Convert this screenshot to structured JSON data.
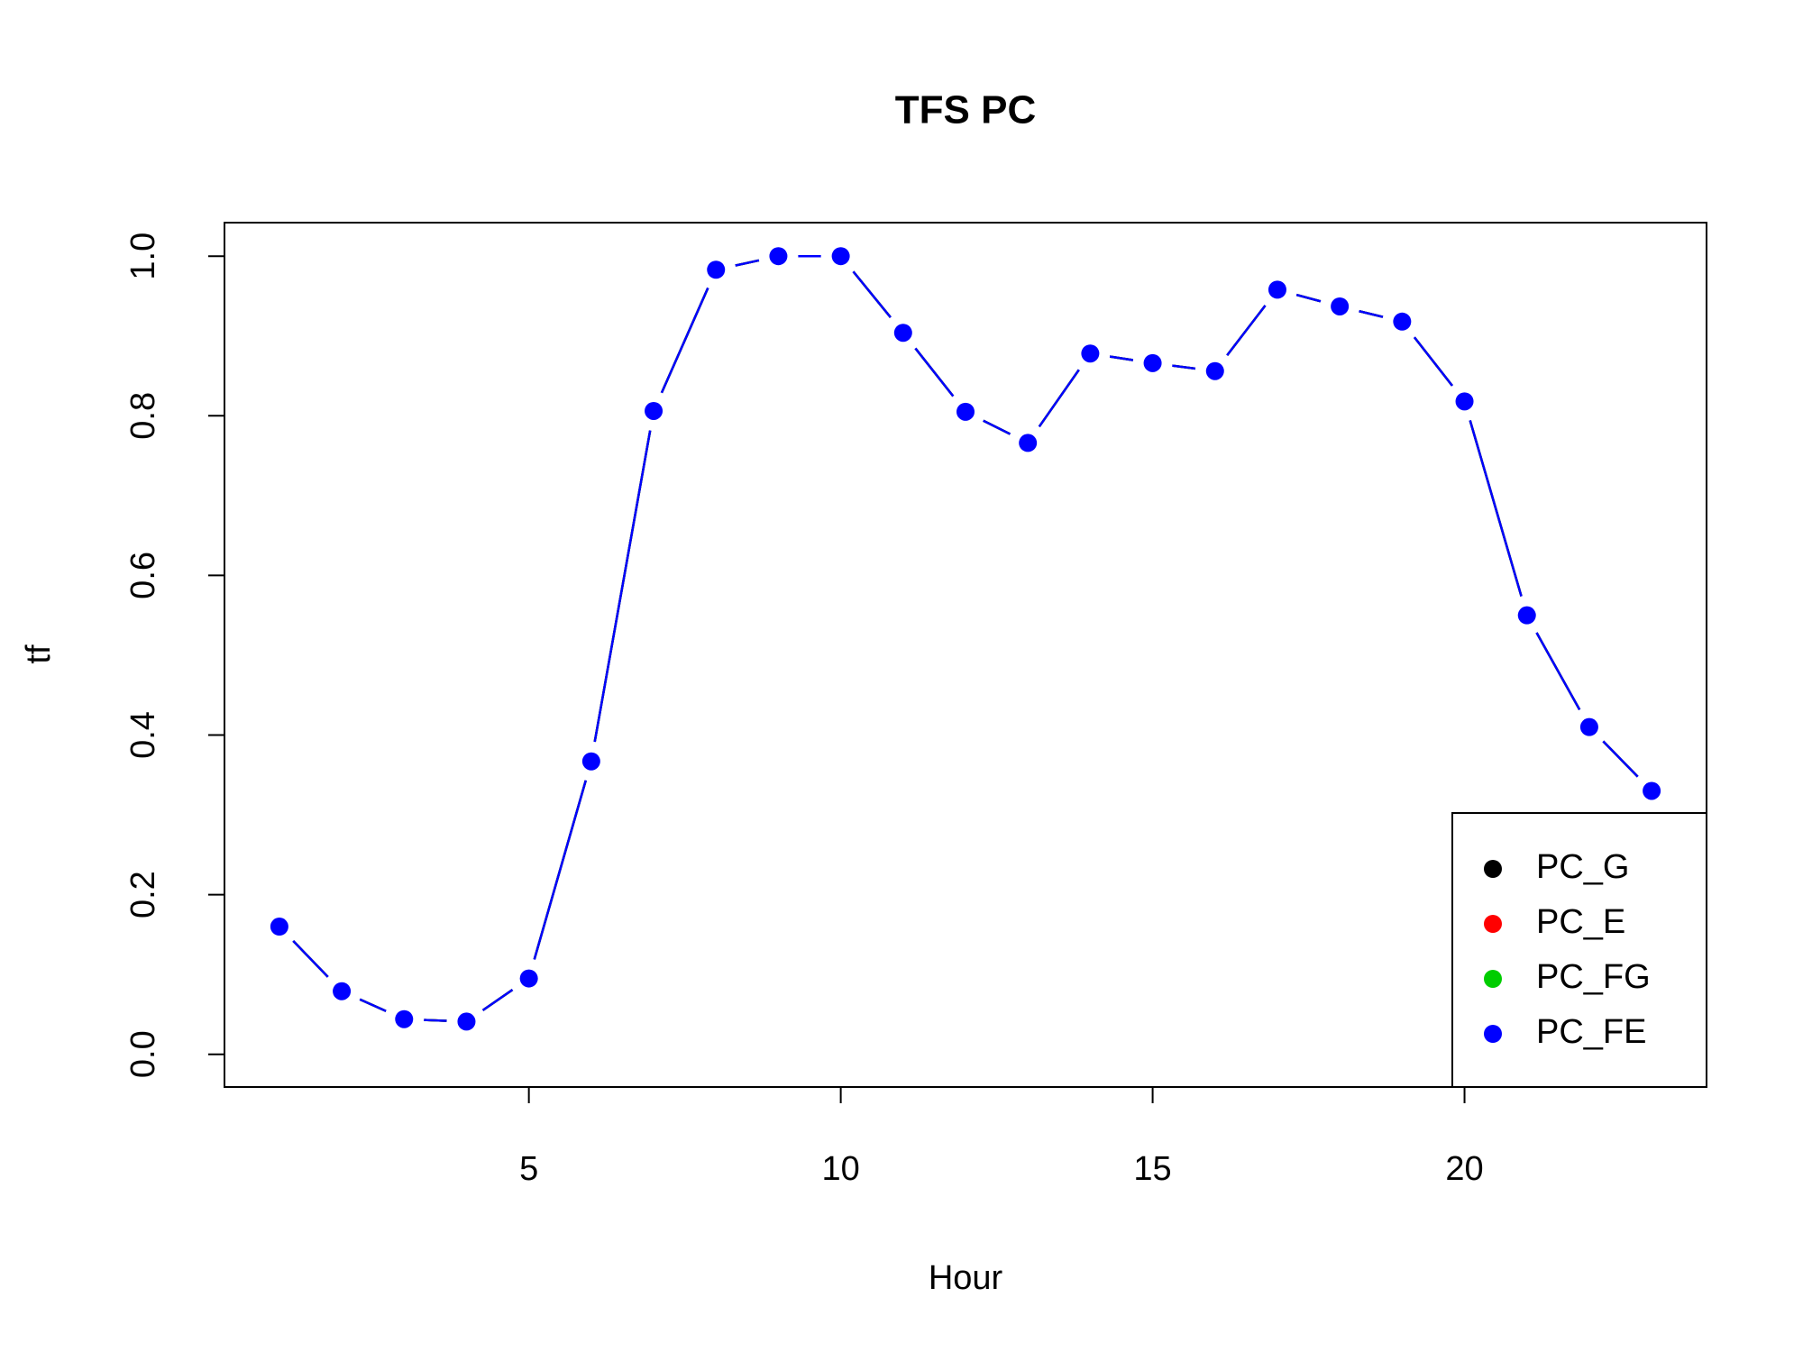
{
  "chart_data": {
    "type": "line",
    "title": "TFS PC",
    "xlabel": "Hour",
    "ylabel": "tf",
    "x": [
      1,
      2,
      3,
      4,
      5,
      6,
      7,
      8,
      9,
      10,
      11,
      12,
      13,
      14,
      15,
      16,
      17,
      18,
      19,
      20,
      21,
      22,
      23
    ],
    "series": [
      {
        "name": "PC_G",
        "color": "#000000",
        "values": [
          0.16,
          0.079,
          0.044,
          0.041,
          0.095,
          0.367,
          0.806,
          0.983,
          1.0,
          1.0,
          0.904,
          0.805,
          0.766,
          0.878,
          0.866,
          0.856,
          0.958,
          0.937,
          0.918,
          0.818,
          0.55,
          0.41,
          0.33
        ]
      },
      {
        "name": "PC_E",
        "color": "#ff0000",
        "values": [
          0.16,
          0.079,
          0.044,
          0.041,
          0.095,
          0.367,
          0.806,
          0.983,
          1.0,
          1.0,
          0.904,
          0.805,
          0.766,
          0.878,
          0.866,
          0.856,
          0.958,
          0.937,
          0.918,
          0.818,
          0.55,
          0.41,
          0.33
        ]
      },
      {
        "name": "PC_FG",
        "color": "#00cd00",
        "values": [
          0.16,
          0.079,
          0.044,
          0.041,
          0.095,
          0.367,
          0.806,
          0.983,
          1.0,
          1.0,
          0.904,
          0.805,
          0.766,
          0.878,
          0.866,
          0.856,
          0.958,
          0.937,
          0.918,
          0.818,
          0.55,
          0.41,
          0.33
        ]
      },
      {
        "name": "PC_FE",
        "color": "#0000ff",
        "values": [
          0.16,
          0.079,
          0.044,
          0.041,
          0.095,
          0.367,
          0.806,
          0.983,
          1.0,
          1.0,
          0.904,
          0.805,
          0.766,
          0.878,
          0.866,
          0.856,
          0.958,
          0.937,
          0.918,
          0.818,
          0.55,
          0.41,
          0.33
        ]
      }
    ],
    "xlim": [
      0.12,
      23.88
    ],
    "xticks": [
      5,
      10,
      15,
      20
    ],
    "ylim": [
      -0.041,
      1.042
    ],
    "yticks": [
      {
        "value": 0,
        "label": "0.0"
      },
      0.2,
      0.4,
      0.6,
      0.8,
      {
        "value": 1,
        "label": "1.0"
      }
    ],
    "legend": "bottomright"
  }
}
